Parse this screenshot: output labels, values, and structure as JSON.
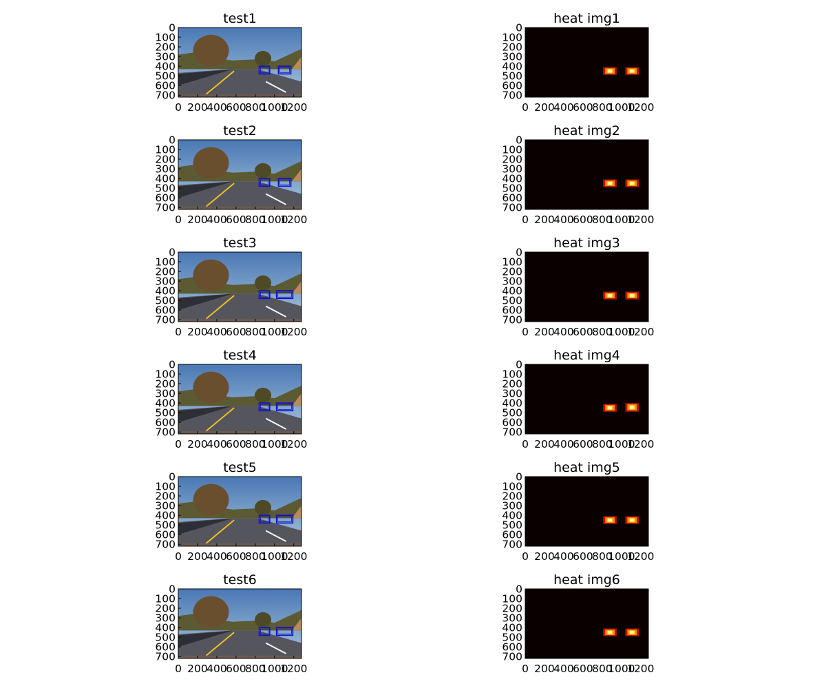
{
  "figure": {
    "layout": "6 rows x 2 columns",
    "left_column_content": "road photo with blue detection boxes",
    "right_column_content": "heatmap on dark background, colormap hot"
  },
  "chart_data": [
    {
      "type": "image",
      "title": "test1",
      "xticks": [
        "0",
        "200",
        "400",
        "600",
        "800",
        "1000",
        "1200"
      ],
      "yticks": [
        "0",
        "100",
        "200",
        "300",
        "400",
        "500",
        "600",
        "700"
      ],
      "xlim": [
        0,
        1280
      ],
      "ylim": [
        720,
        0
      ],
      "boxes": [
        {
          "x": [
            840,
            950
          ],
          "y": [
            400,
            480
          ]
        },
        {
          "x": [
            1040,
            1170
          ],
          "y": [
            400,
            480
          ]
        }
      ]
    },
    {
      "type": "heatmap",
      "title": "heat img1",
      "colormap": "hot",
      "xticks": [
        "0",
        "200",
        "400",
        "600",
        "800",
        "1000",
        "1200"
      ],
      "yticks": [
        "0",
        "100",
        "200",
        "300",
        "400",
        "500",
        "600",
        "700"
      ],
      "xlim": [
        0,
        1280
      ],
      "ylim": [
        720,
        0
      ],
      "hot_spots": [
        {
          "x": [
            810,
            950
          ],
          "y": [
            410,
            490
          ]
        },
        {
          "x": [
            1040,
            1180
          ],
          "y": [
            410,
            490
          ]
        }
      ]
    },
    {
      "type": "image",
      "title": "test2",
      "xticks": [
        "0",
        "200",
        "400",
        "600",
        "800",
        "1000",
        "1200"
      ],
      "yticks": [
        "0",
        "100",
        "200",
        "300",
        "400",
        "500",
        "600",
        "700"
      ],
      "xlim": [
        0,
        1280
      ],
      "ylim": [
        720,
        0
      ],
      "boxes": [
        {
          "x": [
            840,
            950
          ],
          "y": [
            400,
            480
          ]
        },
        {
          "x": [
            1040,
            1170
          ],
          "y": [
            400,
            480
          ]
        }
      ]
    },
    {
      "type": "heatmap",
      "title": "heat img2",
      "colormap": "hot",
      "xticks": [
        "0",
        "200",
        "400",
        "600",
        "800",
        "1000",
        "1200"
      ],
      "yticks": [
        "0",
        "100",
        "200",
        "300",
        "400",
        "500",
        "600",
        "700"
      ],
      "xlim": [
        0,
        1280
      ],
      "ylim": [
        720,
        0
      ],
      "hot_spots": [
        {
          "x": [
            810,
            950
          ],
          "y": [
            410,
            490
          ]
        },
        {
          "x": [
            1040,
            1180
          ],
          "y": [
            410,
            490
          ]
        }
      ]
    },
    {
      "type": "image",
      "title": "test3",
      "xticks": [
        "0",
        "200",
        "400",
        "600",
        "800",
        "1000",
        "1200"
      ],
      "yticks": [
        "0",
        "100",
        "200",
        "300",
        "400",
        "500",
        "600",
        "700"
      ],
      "xlim": [
        0,
        1280
      ],
      "ylim": [
        720,
        0
      ],
      "boxes": [
        {
          "x": [
            840,
            950
          ],
          "y": [
            400,
            480
          ]
        },
        {
          "x": [
            1020,
            1190
          ],
          "y": [
            400,
            480
          ]
        }
      ]
    },
    {
      "type": "heatmap",
      "title": "heat img3",
      "colormap": "hot",
      "xticks": [
        "0",
        "200",
        "400",
        "600",
        "800",
        "1000",
        "1200"
      ],
      "yticks": [
        "0",
        "100",
        "200",
        "300",
        "400",
        "500",
        "600",
        "700"
      ],
      "xlim": [
        0,
        1280
      ],
      "ylim": [
        720,
        0
      ],
      "hot_spots": [
        {
          "x": [
            810,
            950
          ],
          "y": [
            410,
            490
          ]
        },
        {
          "x": [
            1040,
            1180
          ],
          "y": [
            410,
            490
          ]
        }
      ]
    },
    {
      "type": "image",
      "title": "test4",
      "xticks": [
        "0",
        "200",
        "400",
        "600",
        "800",
        "1000",
        "1200"
      ],
      "yticks": [
        "0",
        "100",
        "200",
        "300",
        "400",
        "500",
        "600",
        "700"
      ],
      "xlim": [
        0,
        1280
      ],
      "ylim": [
        720,
        0
      ],
      "boxes": [
        {
          "x": [
            840,
            950
          ],
          "y": [
            400,
            480
          ]
        },
        {
          "x": [
            1020,
            1190
          ],
          "y": [
            400,
            480
          ]
        }
      ]
    },
    {
      "type": "heatmap",
      "title": "heat img4",
      "colormap": "hot",
      "xticks": [
        "0",
        "200",
        "400",
        "600",
        "800",
        "1000",
        "1200"
      ],
      "yticks": [
        "0",
        "100",
        "200",
        "300",
        "400",
        "500",
        "600",
        "700"
      ],
      "xlim": [
        0,
        1280
      ],
      "ylim": [
        720,
        0
      ],
      "hot_spots": [
        {
          "x": [
            810,
            950
          ],
          "y": [
            410,
            490
          ]
        },
        {
          "x": [
            1040,
            1180
          ],
          "y": [
            400,
            490
          ]
        }
      ]
    },
    {
      "type": "image",
      "title": "test5",
      "xticks": [
        "0",
        "200",
        "400",
        "600",
        "800",
        "1000",
        "1200"
      ],
      "yticks": [
        "0",
        "100",
        "200",
        "300",
        "400",
        "500",
        "600",
        "700"
      ],
      "xlim": [
        0,
        1280
      ],
      "ylim": [
        720,
        0
      ],
      "boxes": [
        {
          "x": [
            840,
            950
          ],
          "y": [
            400,
            480
          ]
        },
        {
          "x": [
            1020,
            1190
          ],
          "y": [
            400,
            480
          ]
        }
      ]
    },
    {
      "type": "heatmap",
      "title": "heat img5",
      "colormap": "hot",
      "xticks": [
        "0",
        "200",
        "400",
        "600",
        "800",
        "1000",
        "1200"
      ],
      "yticks": [
        "0",
        "100",
        "200",
        "300",
        "400",
        "500",
        "600",
        "700"
      ],
      "xlim": [
        0,
        1280
      ],
      "ylim": [
        720,
        0
      ],
      "hot_spots": [
        {
          "x": [
            810,
            950
          ],
          "y": [
            410,
            490
          ]
        },
        {
          "x": [
            1040,
            1180
          ],
          "y": [
            410,
            490
          ]
        }
      ]
    },
    {
      "type": "image",
      "title": "test6",
      "xticks": [
        "0",
        "200",
        "400",
        "600",
        "800",
        "1000",
        "1200"
      ],
      "yticks": [
        "0",
        "100",
        "200",
        "300",
        "400",
        "500",
        "600",
        "700"
      ],
      "xlim": [
        0,
        1280
      ],
      "ylim": [
        720,
        0
      ],
      "boxes": [
        {
          "x": [
            840,
            950
          ],
          "y": [
            400,
            480
          ]
        },
        {
          "x": [
            1020,
            1190
          ],
          "y": [
            400,
            480
          ]
        }
      ]
    },
    {
      "type": "heatmap",
      "title": "heat img6",
      "colormap": "hot",
      "xticks": [
        "0",
        "200",
        "400",
        "600",
        "800",
        "1000",
        "1200"
      ],
      "yticks": [
        "0",
        "100",
        "200",
        "300",
        "400",
        "500",
        "600",
        "700"
      ],
      "xlim": [
        0,
        1280
      ],
      "ylim": [
        720,
        0
      ],
      "hot_spots": [
        {
          "x": [
            810,
            950
          ],
          "y": [
            410,
            490
          ]
        },
        {
          "x": [
            1040,
            1180
          ],
          "y": [
            410,
            490
          ]
        }
      ]
    }
  ],
  "colors": {
    "heat_background": "#0a0000",
    "heat_outer": "#b41400",
    "heat_mid": "#ff8c00",
    "heat_core": "#ffff8c",
    "box_color": "#1010c8",
    "sky_top": "#4a78b4",
    "sky_bottom": "#a8c4dc",
    "road": "#55555e",
    "lane_yellow": "#f0c020"
  }
}
